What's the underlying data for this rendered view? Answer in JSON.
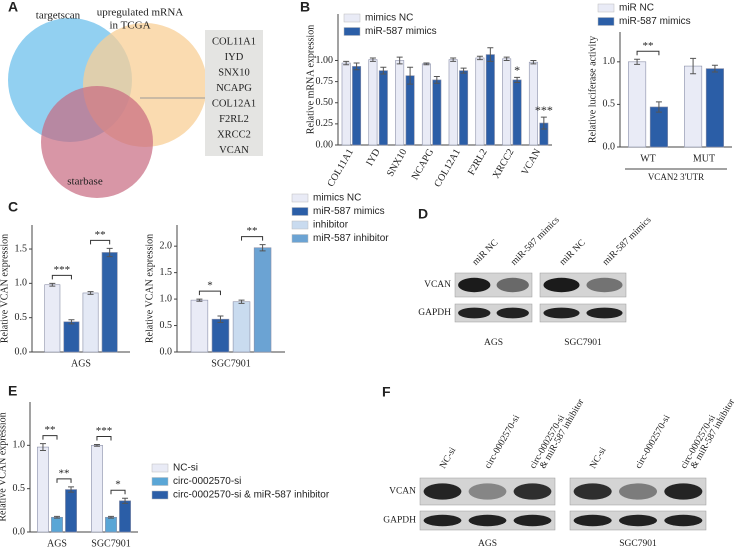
{
  "panels": [
    "A",
    "B",
    "C",
    "D",
    "E",
    "F"
  ],
  "venn": {
    "left": "targetscan",
    "right": [
      "upregulated mRNA",
      "in TCGA"
    ],
    "bottom": "starbase",
    "genes": [
      "COL11A1",
      "IYD",
      "SNX10",
      "NCAPG",
      "COL12A1",
      "F2RL2",
      "XRCC2",
      "VCAN"
    ]
  },
  "blot_panels": [
    {
      "rows": [
        "VCAN",
        "GAPDH"
      ],
      "blots": [
        {
          "lanes": [
            [
              "miR NC"
            ],
            [
              "miR-587 mimics"
            ]
          ],
          "cell": "AGS"
        },
        {
          "lanes": [
            [
              "miR NC"
            ],
            [
              "miR-587 mimics"
            ]
          ],
          "cell": "SGC7901"
        }
      ]
    },
    {
      "rows": [
        "VCAN",
        "GAPDH"
      ],
      "blots": [
        {
          "lanes": [
            [
              "NC-si"
            ],
            [
              "circ-0002570-si"
            ],
            [
              "circ-0002570-si",
              "& miR-587 inhibitor"
            ]
          ],
          "cell": "AGS"
        },
        {
          "lanes": [
            [
              "NC-si"
            ],
            [
              "circ-0002570-si"
            ],
            [
              "circ-0002570-si",
              "& miR-587 inhibitor"
            ]
          ],
          "cell": "SGC7901"
        }
      ]
    }
  ],
  "chart_data": [
    {
      "type": "bar",
      "ylabel": "Relative mRNA expression",
      "categories": [
        "COL11A1",
        "IYD",
        "SNX10",
        "NCAPG",
        "COL12A1",
        "F2RL2",
        "XRCC2",
        "VCAN"
      ],
      "series": [
        {
          "name": "mimics NC",
          "color": "#e9ebf6",
          "values": [
            0.97,
            1.01,
            1.0,
            0.96,
            1.01,
            1.03,
            1.02,
            0.98
          ],
          "errors": [
            0.02,
            0.02,
            0.04,
            0.01,
            0.02,
            0.02,
            0.02,
            0.02
          ]
        },
        {
          "name": "miR-587 mimics",
          "color": "#2b5ea7",
          "values": [
            0.93,
            0.88,
            0.82,
            0.77,
            0.88,
            1.07,
            0.77,
            0.26
          ],
          "errors": [
            0.04,
            0.04,
            0.1,
            0.04,
            0.03,
            0.08,
            0.03,
            0.07
          ]
        }
      ],
      "ylim": [
        0,
        1.55
      ],
      "yticks": [
        {
          "value": 0,
          "label": "0.00"
        },
        0.25,
        {
          "value": 0.5,
          "label": "0.50"
        },
        0.75,
        {
          "value": 1,
          "label": "1.00"
        }
      ],
      "annotations": [
        {
          "label": "*",
          "category": "XRCC2"
        },
        {
          "label": "***",
          "category": "VCAN"
        }
      ],
      "legend": "upper left"
    },
    {
      "type": "bar",
      "ylabel": "Relative  luciferase activity",
      "xlabel": "VCAN2 3'UTR",
      "categories": [
        "WT",
        "MUT"
      ],
      "series": [
        {
          "name": "miR NC",
          "color": "#e9ebf6",
          "values": [
            1.0,
            0.95
          ],
          "errors": [
            0.03,
            0.09
          ]
        },
        {
          "name": "miR-587 mimics",
          "color": "#2b5ea7",
          "values": [
            0.47,
            0.92
          ],
          "errors": [
            0.06,
            0.04
          ]
        }
      ],
      "ylim": [
        0,
        1.35
      ],
      "yticks": [
        {
          "value": 0,
          "label": "0.0"
        },
        0.5,
        {
          "value": 1,
          "label": "1.0"
        }
      ],
      "significance": [
        {
          "label": "**",
          "category": "WT",
          "series": [
            0,
            1
          ]
        }
      ],
      "legend": "top"
    },
    {
      "type": "bar",
      "ylabel": "Relative VCAN expression",
      "categories": [
        "AGS"
      ],
      "series": [
        {
          "color": "#e9ebf6",
          "values": [
            0.98
          ],
          "errors": [
            0.02
          ]
        },
        {
          "color": "#2b5ea7",
          "values": [
            0.44
          ],
          "errors": [
            0.03
          ]
        },
        {
          "color": "#e4e9f5",
          "values": [
            0.86
          ],
          "errors": [
            0.02
          ]
        },
        {
          "color": "#2f62a8",
          "values": [
            1.45
          ],
          "errors": [
            0.06
          ]
        }
      ],
      "ylim": [
        0,
        1.85
      ],
      "yticks": [
        {
          "value": 0,
          "label": "0.0"
        },
        0.5,
        {
          "value": 1,
          "label": "1.0"
        },
        1.5
      ],
      "significance": [
        {
          "label": "***",
          "category": "AGS",
          "series": [
            0,
            1
          ]
        },
        {
          "label": "**",
          "category": "AGS",
          "series": [
            2,
            3
          ]
        }
      ]
    },
    {
      "type": "bar",
      "ylabel": "Relative VCAN expression",
      "categories": [
        "SGC7901"
      ],
      "series": [
        {
          "name": "mimics NC",
          "color": "#e9ebf6",
          "values": [
            0.98
          ],
          "errors": [
            0.02
          ]
        },
        {
          "name": "miR-587 mimics",
          "color": "#2b5ea7",
          "values": [
            0.62
          ],
          "errors": [
            0.06
          ]
        },
        {
          "name": "inhibitor",
          "color": "#c9dbef",
          "values": [
            0.95
          ],
          "errors": [
            0.03
          ]
        },
        {
          "name": "miR-587 inhibitor",
          "color": "#6ba3d3",
          "values": [
            1.97
          ],
          "errors": [
            0.06
          ]
        }
      ],
      "ylim": [
        0,
        2.4
      ],
      "yticks": [
        {
          "value": 0,
          "label": "0.0"
        },
        0.5,
        {
          "value": 1,
          "label": "1.0"
        },
        1.5,
        {
          "value": 2,
          "label": "2.0"
        }
      ],
      "significance": [
        {
          "label": "*",
          "category": "SGC7901",
          "series": [
            0,
            1
          ]
        },
        {
          "label": "**",
          "category": "SGC7901",
          "series": [
            2,
            3
          ]
        }
      ],
      "legend": "right"
    },
    {
      "type": "bar",
      "ylabel": "Relative VCAN expression",
      "categories": [
        "AGS",
        "SGC7901"
      ],
      "series": [
        {
          "name": "NC-si",
          "color": "#e9ebf6",
          "values": [
            0.98,
            1.0
          ],
          "errors": [
            0.04,
            0.01
          ]
        },
        {
          "name": "circ-0002570-si",
          "color": "#5aa6d6",
          "values": [
            0.17,
            0.17
          ],
          "errors": [
            0.01,
            0.01
          ]
        },
        {
          "name": "circ-0002570-si & miR-587 inhibitor",
          "color": "#2b5ea7",
          "values": [
            0.49,
            0.36
          ],
          "errors": [
            0.03,
            0.03
          ]
        }
      ],
      "ylim": [
        0,
        1.5
      ],
      "yticks": [
        {
          "value": 0,
          "label": "0.0"
        },
        0.5,
        {
          "value": 1,
          "label": "1.0"
        }
      ],
      "significance": [
        {
          "label": "**",
          "category": "AGS",
          "series": [
            0,
            1
          ]
        },
        {
          "label": "**",
          "category": "AGS",
          "series": [
            1,
            2
          ]
        },
        {
          "label": "***",
          "category": "SGC7901",
          "series": [
            0,
            1
          ]
        },
        {
          "label": "*",
          "category": "SGC7901",
          "series": [
            1,
            2
          ]
        }
      ],
      "legend": "right"
    }
  ]
}
